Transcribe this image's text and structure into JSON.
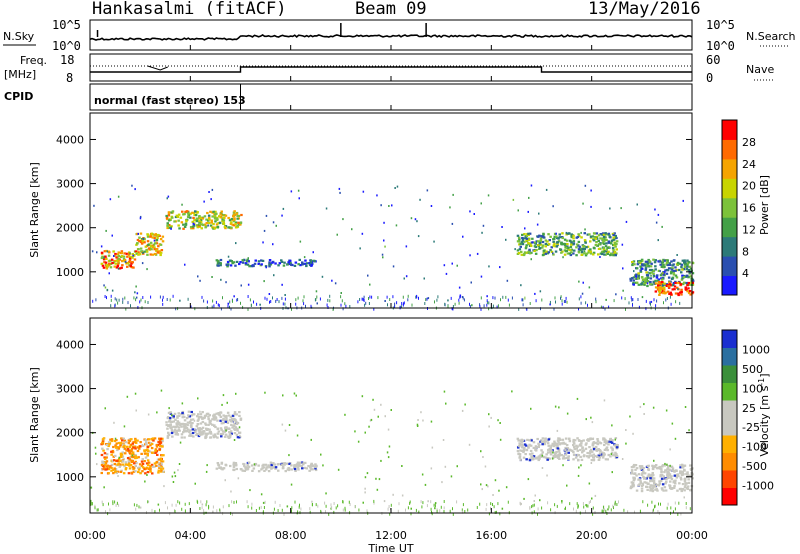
{
  "header": {
    "station": "Hankasalmi (fitACF)",
    "beam": "Beam 09",
    "date": "13/May/2016"
  },
  "noise_panel": {
    "left_label": "N.Sky",
    "right_label": "N.Search",
    "left_ticks": [
      "10^5",
      "10^0"
    ],
    "right_ticks": [
      "10^5",
      "10^0"
    ]
  },
  "freq_panel": {
    "left_label_1": "Freq.",
    "left_label_2": "[MHz]",
    "right_label": "Nave",
    "left_ticks": [
      "18",
      "8"
    ],
    "right_ticks": [
      "60",
      "0"
    ]
  },
  "cpid_panel": {
    "label": "CPID",
    "text": "normal (fast stereo) 153"
  },
  "axes": {
    "ylabel": "Slant Range [km]",
    "xlabel": "Time UT",
    "yticks": [
      "4000",
      "3000",
      "2000",
      "1000"
    ],
    "xticks": [
      "00:00",
      "04:00",
      "08:00",
      "12:00",
      "16:00",
      "20:00",
      "00:00"
    ]
  },
  "chart_data": [
    {
      "type": "heatmap",
      "title": "",
      "quantity": "Power",
      "xlabel": "Time UT",
      "ylabel": "Slant Range [km]",
      "xlim": [
        "00:00",
        "24:00"
      ],
      "ylim": [
        180,
        4600
      ],
      "colorbar": {
        "label": "Power [dB]",
        "ticks": [
          "28",
          "24",
          "20",
          "16",
          "12",
          "8",
          "4"
        ],
        "range": [
          0,
          30
        ],
        "colors": [
          "#1a1aff",
          "#2a4fb0",
          "#2c7a78",
          "#43a047",
          "#7cc23a",
          "#c8d400",
          "#f5a400",
          "#ff6a00",
          "#ff0000"
        ]
      },
      "regions": [
        {
          "t_start": 0.4,
          "t_end": 1.8,
          "r_low": 1100,
          "r_high": 1500,
          "power": 22
        },
        {
          "t_start": 1.8,
          "t_end": 2.9,
          "r_low": 1400,
          "r_high": 1900,
          "power": 20
        },
        {
          "t_start": 3.0,
          "t_end": 6.0,
          "r_low": 2000,
          "r_high": 2400,
          "power": 17
        },
        {
          "t_start": 5.0,
          "t_end": 9.0,
          "r_low": 1150,
          "r_high": 1300,
          "power": 6
        },
        {
          "t_start": 17.0,
          "t_end": 21.0,
          "r_low": 1400,
          "r_high": 1900,
          "power": 12
        },
        {
          "t_start": 21.5,
          "t_end": 24.0,
          "r_low": 700,
          "r_high": 1300,
          "power": 10
        },
        {
          "t_start": 22.5,
          "t_end": 24.0,
          "r_low": 500,
          "r_high": 800,
          "power": 26
        }
      ]
    },
    {
      "type": "heatmap",
      "title": "",
      "quantity": "Velocity",
      "xlabel": "Time UT",
      "ylabel": "Slant Range [km]",
      "xlim": [
        "00:00",
        "24:00"
      ],
      "ylim": [
        180,
        4600
      ],
      "colorbar": {
        "label": "Velocity [m s^-1]",
        "ticks": [
          "1000",
          "500",
          "100",
          "25",
          "-25",
          "-100",
          "-500",
          "-1000"
        ],
        "range": [
          -1000,
          1000
        ],
        "colors": [
          "#ff0000",
          "#ff4500",
          "#ff8c00",
          "#ffb000",
          "#c8c8c0",
          "#c8c8c0",
          "#5ab82a",
          "#3a8f3a",
          "#2a6fa0",
          "#1a2fd0"
        ]
      },
      "regions": [
        {
          "t_start": 0.4,
          "t_end": 2.9,
          "r_low": 1100,
          "r_high": 1900,
          "velocity": -400
        },
        {
          "t_start": 3.0,
          "t_end": 6.0,
          "r_low": 1900,
          "r_high": 2500,
          "velocity": 0
        },
        {
          "t_start": 5.0,
          "t_end": 9.0,
          "r_low": 1150,
          "r_high": 1350,
          "velocity": 0
        },
        {
          "t_start": 17.0,
          "t_end": 21.0,
          "r_low": 1400,
          "r_high": 1900,
          "velocity": 0
        },
        {
          "t_start": 21.5,
          "t_end": 24.0,
          "r_low": 700,
          "r_high": 1300,
          "velocity": 0
        }
      ]
    }
  ]
}
